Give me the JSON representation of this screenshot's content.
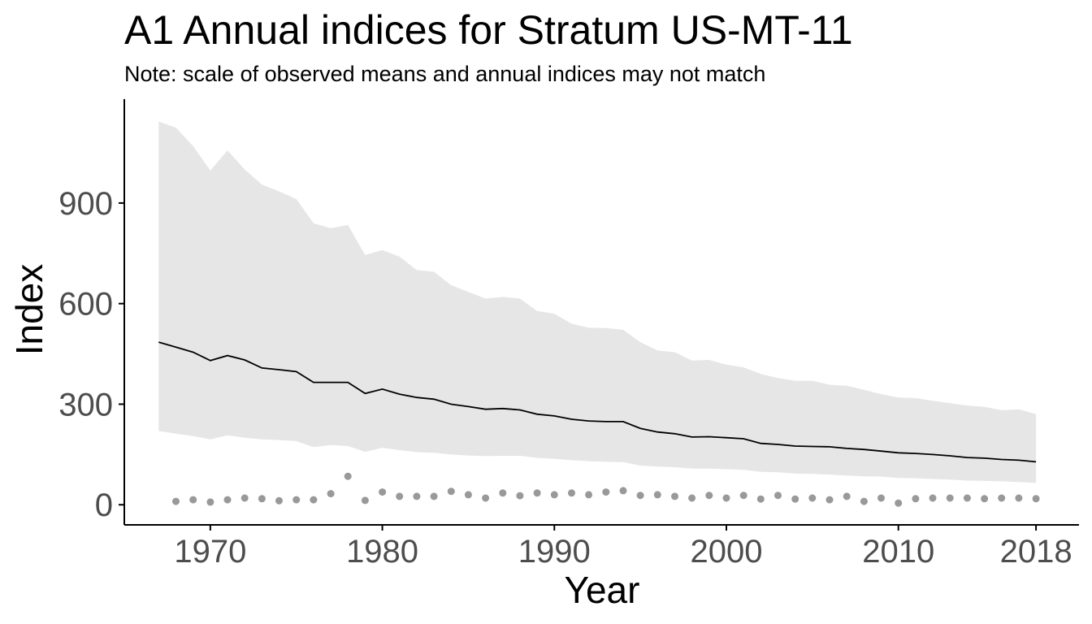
{
  "chart_data": {
    "type": "line",
    "title": "A1 Annual indices for Stratum US-MT-11",
    "subtitle": "Note: scale of observed means and annual indices may not match",
    "xlabel": "Year",
    "ylabel": "Index",
    "xlim": [
      1965,
      2020.5
    ],
    "ylim": [
      -60,
      1210
    ],
    "x_ticks": [
      1970,
      1980,
      1990,
      2000,
      2010,
      2018
    ],
    "y_ticks": [
      0,
      300,
      600,
      900
    ],
    "grid": false,
    "legend": "none",
    "colors": {
      "index_line": "#000000",
      "ribbon": "#e6e6e6",
      "observed_points": "#999999",
      "axis": "#000000",
      "tick_label": "#4d4d4d"
    },
    "series": [
      {
        "type": "line",
        "x": [
          1967,
          1968,
          1969,
          1970,
          1971,
          1972,
          1973,
          1974,
          1975,
          1976,
          1977,
          1978,
          1979,
          1980,
          1981,
          1982,
          1983,
          1984,
          1985,
          1986,
          1987,
          1988,
          1989,
          1990,
          1991,
          1992,
          1993,
          1994,
          1995,
          1996,
          1997,
          1998,
          1999,
          2000,
          2001,
          2002,
          2003,
          2004,
          2005,
          2006,
          2007,
          2008,
          2009,
          2010,
          2011,
          2012,
          2013,
          2014,
          2015,
          2016,
          2017,
          2018
        ],
        "values": [
          485,
          470,
          455,
          430,
          445,
          432,
          408,
          403,
          397,
          365,
          365,
          365,
          332,
          345,
          330,
          320,
          315,
          300,
          293,
          285,
          287,
          283,
          270,
          265,
          255,
          250,
          248,
          248,
          228,
          217,
          212,
          202,
          203,
          200,
          197,
          183,
          180,
          175,
          174,
          173,
          168,
          165,
          160,
          155,
          153,
          150,
          146,
          141,
          139,
          135,
          133,
          128
        ]
      },
      {
        "type": "area",
        "x": [
          1967,
          1968,
          1969,
          1970,
          1971,
          1972,
          1973,
          1974,
          1975,
          1976,
          1977,
          1978,
          1979,
          1980,
          1981,
          1982,
          1983,
          1984,
          1985,
          1986,
          1987,
          1988,
          1989,
          1990,
          1991,
          1992,
          1993,
          1994,
          1995,
          1996,
          1997,
          1998,
          1999,
          2000,
          2001,
          2002,
          2003,
          2004,
          2005,
          2006,
          2007,
          2008,
          2009,
          2010,
          2011,
          2012,
          2013,
          2014,
          2015,
          2016,
          2017,
          2018
        ],
        "upper": [
          1143,
          1125,
          1070,
          997,
          1057,
          1000,
          955,
          935,
          912,
          840,
          825,
          835,
          745,
          760,
          740,
          700,
          695,
          655,
          635,
          615,
          620,
          615,
          578,
          570,
          540,
          528,
          527,
          522,
          485,
          460,
          455,
          430,
          432,
          418,
          410,
          390,
          378,
          370,
          370,
          358,
          355,
          343,
          330,
          320,
          318,
          310,
          303,
          296,
          292,
          282,
          285,
          270
        ],
        "lower": [
          220,
          212,
          205,
          195,
          207,
          200,
          195,
          193,
          190,
          172,
          178,
          175,
          158,
          170,
          163,
          157,
          155,
          150,
          147,
          145,
          146,
          146,
          140,
          137,
          133,
          130,
          128,
          127,
          117,
          114,
          112,
          108,
          108,
          106,
          104,
          98,
          97,
          93,
          92,
          90,
          87,
          85,
          84,
          80,
          79,
          77,
          75,
          72,
          71,
          70,
          68,
          65
        ]
      },
      {
        "type": "scatter",
        "x": [
          1968,
          1969,
          1970,
          1971,
          1972,
          1973,
          1974,
          1975,
          1976,
          1977,
          1978,
          1979,
          1980,
          1981,
          1982,
          1983,
          1984,
          1985,
          1986,
          1987,
          1988,
          1989,
          1990,
          1991,
          1992,
          1993,
          1994,
          1995,
          1996,
          1997,
          1998,
          1999,
          2000,
          2001,
          2002,
          2003,
          2004,
          2005,
          2006,
          2007,
          2008,
          2009,
          2010,
          2011,
          2012,
          2013,
          2014,
          2015,
          2016,
          2017,
          2018
        ],
        "values": [
          10,
          15,
          8,
          15,
          20,
          18,
          12,
          15,
          15,
          33,
          85,
          13,
          38,
          25,
          25,
          25,
          40,
          30,
          20,
          35,
          27,
          35,
          30,
          35,
          30,
          38,
          42,
          28,
          30,
          25,
          20,
          28,
          20,
          28,
          17,
          28,
          17,
          20,
          15,
          25,
          10,
          20,
          5,
          18,
          20,
          20,
          20,
          18,
          20,
          20,
          18
        ]
      }
    ]
  }
}
